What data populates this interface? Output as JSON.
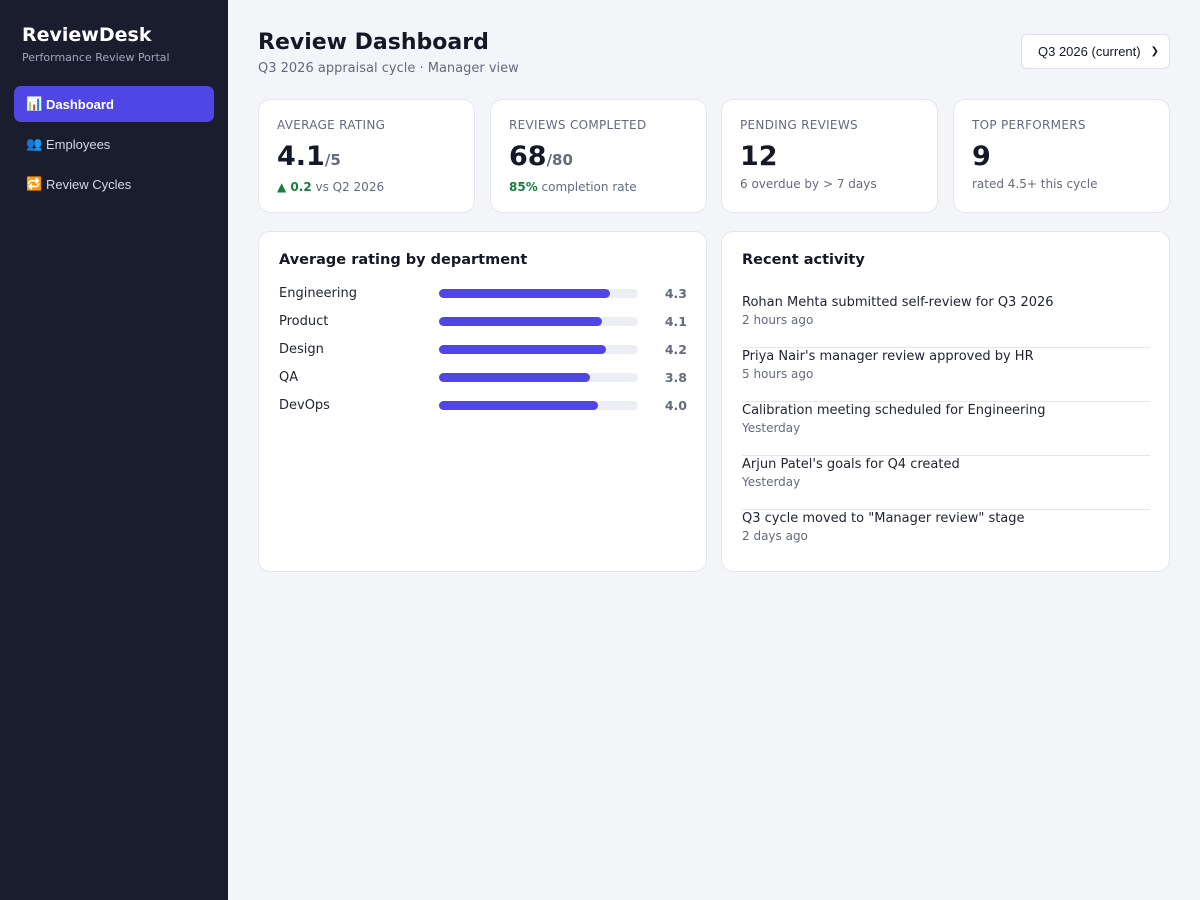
{
  "app": {
    "name": "ReviewDesk",
    "tagline": "Performance Review Portal"
  },
  "sidebar": {
    "items": [
      {
        "icon": "📊",
        "icon_name": "chart-icon",
        "label": "Dashboard",
        "active": true
      },
      {
        "icon": "👥",
        "icon_name": "people-icon",
        "label": "Employees",
        "active": false
      },
      {
        "icon": "🔁",
        "icon_name": "repeat-icon",
        "label": "Review Cycles",
        "active": false
      }
    ]
  },
  "header": {
    "title": "Review Dashboard",
    "subtitle": "Q3 2026 appraisal cycle · Manager view",
    "cycle_select": {
      "selected": "Q3 2026 (current)"
    }
  },
  "stats": [
    {
      "label": "AVERAGE RATING",
      "value": "4.1",
      "suffix": "/5",
      "note_highlight": "▲ 0.2",
      "note": " vs Q2 2026"
    },
    {
      "label": "REVIEWS COMPLETED",
      "value": "68",
      "suffix": "/80",
      "note_highlight": "85%",
      "note": " completion rate"
    },
    {
      "label": "PENDING REVIEWS",
      "value": "12",
      "suffix": "",
      "note_highlight": "",
      "note": "6 overdue by > 7 days"
    },
    {
      "label": "TOP PERFORMERS",
      "value": "9",
      "suffix": "",
      "note_highlight": "",
      "note": "rated 4.5+ this cycle"
    }
  ],
  "dept_panel": {
    "title": "Average rating by department"
  },
  "chart_data": {
    "type": "bar",
    "title": "Average rating by department",
    "categories": [
      "Engineering",
      "Product",
      "Design",
      "QA",
      "DevOps"
    ],
    "values": [
      4.3,
      4.1,
      4.2,
      3.8,
      4.0
    ],
    "value_labels": [
      "4.3",
      "4.1",
      "4.2",
      "3.8",
      "4.0"
    ],
    "xlim": [
      0,
      5
    ],
    "orientation": "horizontal",
    "bar_color": "#4f46e5"
  },
  "activity": {
    "title": "Recent activity",
    "items": [
      {
        "text": "Rohan Mehta submitted self-review for Q3 2026",
        "time": "2 hours ago"
      },
      {
        "text": "Priya Nair's manager review approved by HR",
        "time": "5 hours ago"
      },
      {
        "text": "Calibration meeting scheduled for Engineering",
        "time": "Yesterday"
      },
      {
        "text": "Arjun Patel's goals for Q4 created",
        "time": "Yesterday"
      },
      {
        "text": "Q3 cycle moved to \"Manager review\" stage",
        "time": "2 days ago"
      }
    ]
  },
  "colors": {
    "accent": "#4f46e5",
    "sidebar_bg": "#1a1d2e",
    "positive": "#15803d"
  }
}
